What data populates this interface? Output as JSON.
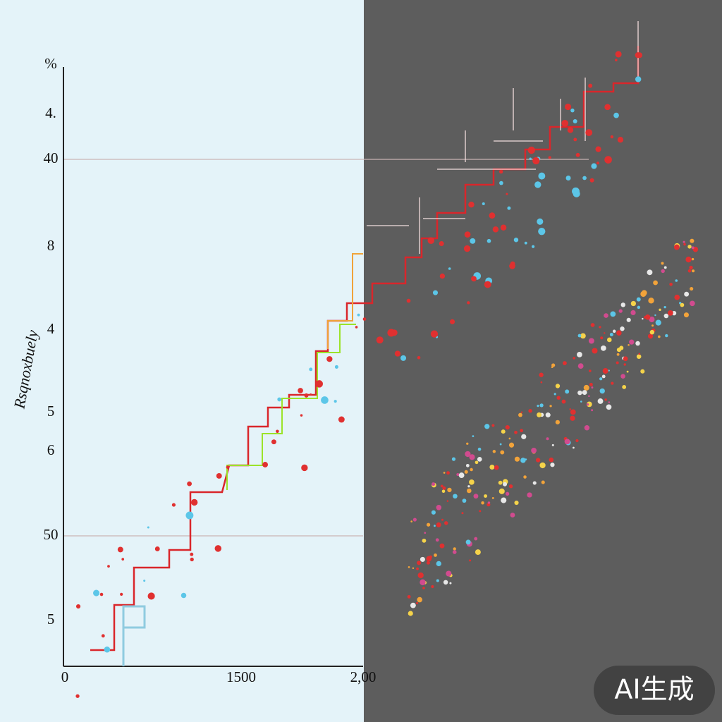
{
  "axis": {
    "y_label": "Rsqnoxbuely",
    "y_ticks": [
      "%",
      "4.",
      "40",
      "8",
      "4",
      "5",
      "6",
      "50",
      "5"
    ],
    "x_ticks": [
      "0",
      "1500",
      "2,00"
    ]
  },
  "watermark": "AI生成"
}
